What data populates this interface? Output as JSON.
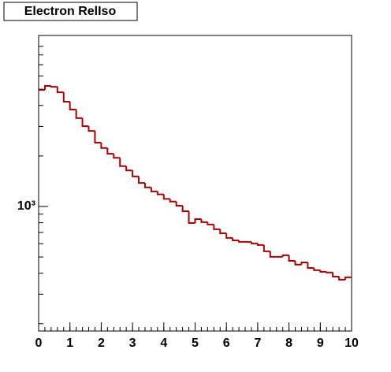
{
  "chart_data": {
    "type": "histogram",
    "title": "Electron RelIso",
    "bins": [
      0,
      0.2,
      0.4,
      0.6,
      0.8,
      1,
      1.2,
      1.4,
      1.6,
      1.8,
      2,
      2.2,
      2.4,
      2.6,
      2.8,
      3,
      3.2,
      3.4,
      3.6,
      3.8,
      4,
      4.2,
      4.4,
      4.6,
      4.8,
      5,
      5.2,
      5.4,
      5.6,
      5.8,
      6,
      6.2,
      6.4,
      6.6,
      6.8,
      7,
      7.2,
      7.4,
      7.6,
      7.8,
      8,
      8.2,
      8.4,
      8.6,
      8.8,
      9,
      9.2,
      9.4,
      9.6,
      9.8,
      10
    ],
    "values": [
      4950,
      5230,
      5170,
      4790,
      4210,
      3780,
      3360,
      3010,
      2820,
      2400,
      2230,
      2060,
      1950,
      1740,
      1640,
      1510,
      1380,
      1300,
      1230,
      1180,
      1110,
      1070,
      1010,
      937,
      797,
      841,
      806,
      780,
      731,
      692,
      649,
      628,
      615,
      615,
      602,
      589,
      540,
      501,
      501,
      512,
      474,
      450,
      464,
      430,
      417,
      408,
      404,
      382,
      366,
      378
    ],
    "color": "#b00000",
    "xlim": [
      0,
      10
    ],
    "xticks": [
      0,
      1,
      2,
      3,
      4,
      5,
      6,
      7,
      8,
      9,
      10
    ],
    "ylim": [
      181,
      10450
    ],
    "log_y": true,
    "yticks": [
      {
        "value": 1000,
        "label": "10³"
      }
    ],
    "yminorticks": [
      200,
      300,
      400,
      500,
      600,
      700,
      800,
      900,
      2000,
      3000,
      4000,
      5000,
      6000,
      7000,
      8000,
      9000
    ]
  }
}
